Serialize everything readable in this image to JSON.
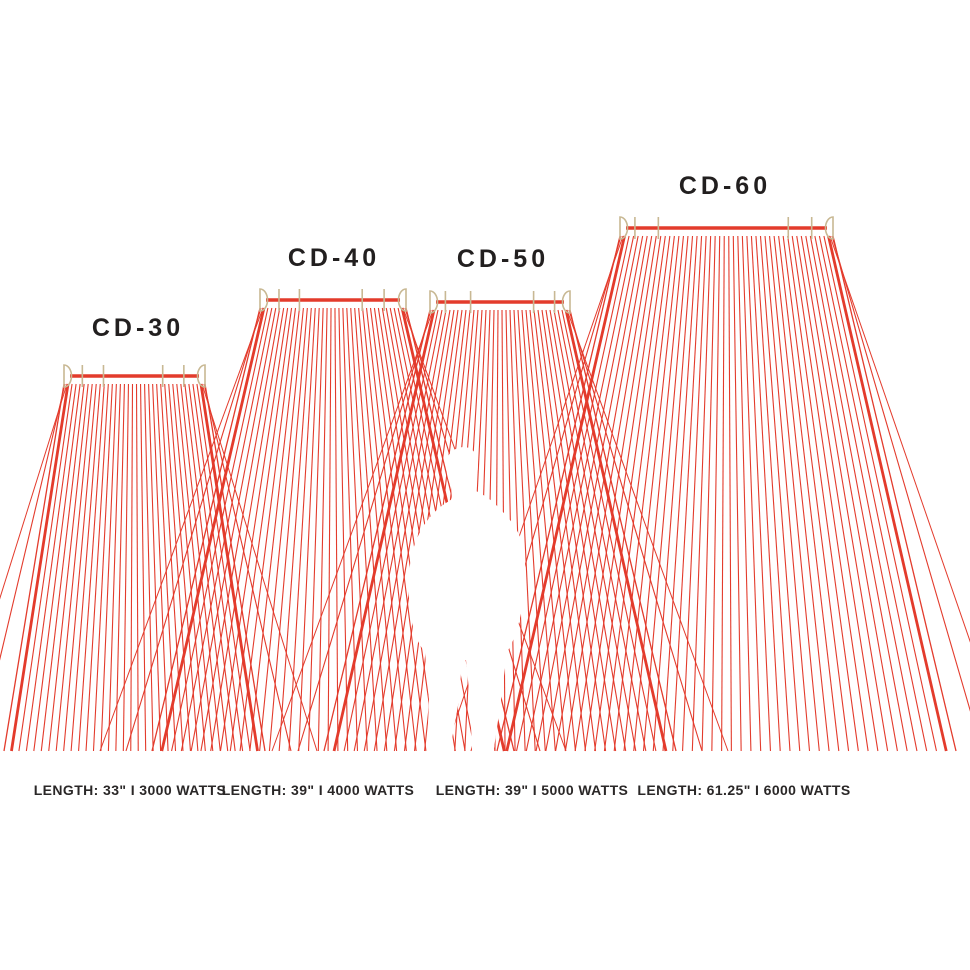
{
  "diagram_title": "",
  "colors": {
    "ray_red": "#e33b2c",
    "hardware_tan": "#c8b893",
    "label_text": "#221f1f"
  },
  "units": [
    {
      "model": "CD-30",
      "spec": "LENGTH: 33\" I 3000 WATTS"
    },
    {
      "model": "CD-40",
      "spec": "LENGTH: 39\" I 4000 WATTS"
    },
    {
      "model": "CD-50",
      "spec": "LENGTH: 39\" I 5000 WATTS"
    },
    {
      "model": "CD-60",
      "spec": "LENGTH: 61.25\" I 6000 WATTS"
    }
  ],
  "icons": {
    "person": "human-silhouette-icon"
  }
}
